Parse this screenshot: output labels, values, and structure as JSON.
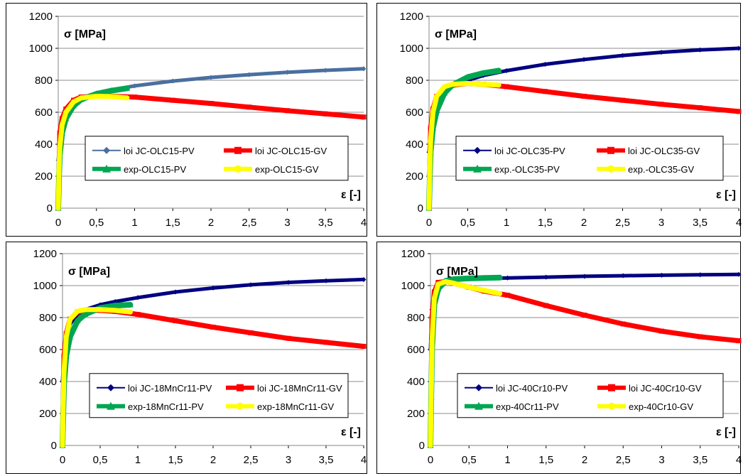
{
  "chart_data": [
    {
      "type": "line",
      "ylabel": "σ [MPa]",
      "xlabel": "ε [-]",
      "xlim": [
        0,
        4
      ],
      "ylim": [
        0,
        1200
      ],
      "xticks": [
        "0",
        "0,5",
        "1",
        "1,5",
        "2",
        "2,5",
        "3",
        "3,5",
        "4"
      ],
      "yticks": [
        "0",
        "200",
        "400",
        "600",
        "800",
        "1000",
        "1200"
      ],
      "grid": true,
      "legend_position": "center",
      "series": [
        {
          "name": "loi JC-OLC15-PV",
          "color": "#4a6fa0",
          "marker": "diamond",
          "x": [
            0,
            0.02,
            0.05,
            0.1,
            0.2,
            0.3,
            0.5,
            0.7,
            1,
            1.5,
            2,
            2.5,
            3,
            3.5,
            4
          ],
          "y": [
            300,
            450,
            540,
            600,
            660,
            690,
            720,
            740,
            765,
            795,
            818,
            835,
            850,
            862,
            872
          ]
        },
        {
          "name": "loi JC-OLC15-GV",
          "color": "#ff0000",
          "marker": "square",
          "x": [
            0,
            0.02,
            0.05,
            0.1,
            0.2,
            0.3,
            0.5,
            0.7,
            1,
            1.5,
            2,
            2.5,
            3,
            3.5,
            4
          ],
          "y": [
            0,
            470,
            560,
            620,
            675,
            695,
            700,
            700,
            695,
            675,
            655,
            632,
            610,
            590,
            570
          ]
        },
        {
          "name": "exp-OLC15-PV",
          "color": "#00a651",
          "marker": "triangle",
          "x": [
            0,
            0.01,
            0.02,
            0.05,
            0.1,
            0.2,
            0.3,
            0.5,
            0.7,
            0.9
          ],
          "y": [
            0,
            200,
            330,
            470,
            560,
            640,
            680,
            715,
            735,
            750
          ]
        },
        {
          "name": "exp-OLC15-GV",
          "color": "#ffff00",
          "marker": "circle",
          "x": [
            0,
            0.01,
            0.02,
            0.05,
            0.1,
            0.2,
            0.3,
            0.5,
            0.7,
            0.9
          ],
          "y": [
            0,
            230,
            380,
            520,
            600,
            665,
            690,
            700,
            698,
            690
          ]
        }
      ]
    },
    {
      "type": "line",
      "ylabel": "σ [MPa]",
      "xlabel": "ε [-]",
      "xlim": [
        0,
        4
      ],
      "ylim": [
        0,
        1200
      ],
      "xticks": [
        "0",
        "0,5",
        "1",
        "1,5",
        "2",
        "2,5",
        "3",
        "3,5",
        "4"
      ],
      "yticks": [
        "0",
        "200",
        "400",
        "600",
        "800",
        "1000",
        "1200"
      ],
      "grid": true,
      "legend_position": "center",
      "series": [
        {
          "name": "loi JC-OLC35-PV",
          "color": "#000080",
          "marker": "diamond",
          "x": [
            0,
            0.02,
            0.05,
            0.1,
            0.2,
            0.3,
            0.5,
            0.7,
            1,
            1.5,
            2,
            2.5,
            3,
            3.5,
            4
          ],
          "y": [
            350,
            500,
            600,
            680,
            740,
            770,
            800,
            830,
            860,
            900,
            930,
            955,
            975,
            990,
            1000
          ]
        },
        {
          "name": "loi JC-OLC35-GV",
          "color": "#ff0000",
          "marker": "square",
          "x": [
            0,
            0.02,
            0.05,
            0.1,
            0.2,
            0.3,
            0.5,
            0.7,
            1,
            1.5,
            2,
            2.5,
            3,
            3.5,
            4
          ],
          "y": [
            0,
            500,
            620,
            700,
            750,
            770,
            780,
            775,
            760,
            730,
            700,
            675,
            650,
            628,
            605
          ]
        },
        {
          "name": "exp.-OLC35-PV",
          "color": "#00a651",
          "marker": "triangle",
          "x": [
            0,
            0.01,
            0.02,
            0.05,
            0.1,
            0.2,
            0.3,
            0.5,
            0.7,
            0.9
          ],
          "y": [
            0,
            200,
            350,
            500,
            610,
            720,
            770,
            820,
            845,
            860
          ]
        },
        {
          "name": "exp.-OLC35-GV",
          "color": "#ffff00",
          "marker": "circle",
          "x": [
            0,
            0.01,
            0.02,
            0.05,
            0.1,
            0.2,
            0.3,
            0.5,
            0.7,
            0.9
          ],
          "y": [
            0,
            250,
            420,
            600,
            700,
            760,
            775,
            780,
            775,
            770
          ]
        }
      ]
    },
    {
      "type": "line",
      "ylabel": "σ [MPa]",
      "xlabel": "ε [-]",
      "xlim": [
        0,
        4
      ],
      "ylim": [
        0,
        1200
      ],
      "xticks": [
        "0",
        "0,5",
        "1",
        "1,5",
        "2",
        "2,5",
        "3",
        "3,5",
        "4"
      ],
      "yticks": [
        "0",
        "200",
        "400",
        "600",
        "800",
        "1000",
        "1200"
      ],
      "grid": true,
      "legend_position": "center",
      "series": [
        {
          "name": "loi JC-18MnCr11-PV",
          "color": "#000080",
          "marker": "diamond",
          "x": [
            0,
            0.02,
            0.05,
            0.1,
            0.2,
            0.3,
            0.5,
            0.7,
            1,
            1.5,
            2,
            2.5,
            3,
            3.5,
            4
          ],
          "y": [
            400,
            560,
            680,
            760,
            820,
            850,
            880,
            900,
            925,
            960,
            985,
            1005,
            1020,
            1030,
            1038
          ]
        },
        {
          "name": "loi JC-18MnCr11-GV",
          "color": "#ff0000",
          "marker": "square",
          "x": [
            0,
            0.02,
            0.05,
            0.1,
            0.2,
            0.3,
            0.5,
            0.7,
            1,
            1.5,
            2,
            2.5,
            3,
            3.5,
            4
          ],
          "y": [
            0,
            560,
            700,
            790,
            835,
            845,
            845,
            838,
            820,
            780,
            740,
            705,
            670,
            645,
            620
          ]
        },
        {
          "name": "exp-18MnCr11-PV",
          "color": "#00a651",
          "marker": "triangle",
          "x": [
            0,
            0.01,
            0.02,
            0.05,
            0.1,
            0.2,
            0.3,
            0.5,
            0.7,
            0.9
          ],
          "y": [
            0,
            200,
            380,
            560,
            680,
            780,
            820,
            860,
            875,
            880
          ]
        },
        {
          "name": "exp-18MnCr11-GV",
          "color": "#ffff00",
          "marker": "circle",
          "x": [
            0,
            0.01,
            0.02,
            0.05,
            0.1,
            0.2,
            0.3,
            0.5,
            0.7,
            0.9
          ],
          "y": [
            0,
            260,
            460,
            680,
            790,
            840,
            850,
            850,
            845,
            835
          ]
        }
      ]
    },
    {
      "type": "line",
      "ylabel": "σ [MPa]",
      "xlabel": "ε [-]",
      "xlim": [
        0,
        4
      ],
      "ylim": [
        0,
        1200
      ],
      "xticks": [
        "0",
        "0,5",
        "1",
        "1,5",
        "2",
        "2,5",
        "3",
        "3,5",
        "4"
      ],
      "yticks": [
        "0",
        "200",
        "400",
        "600",
        "800",
        "1000",
        "1200"
      ],
      "grid": true,
      "legend_position": "center",
      "series": [
        {
          "name": "loi JC-40Cr10-PV",
          "color": "#000080",
          "marker": "diamond",
          "x": [
            0,
            0.02,
            0.05,
            0.1,
            0.2,
            0.3,
            0.5,
            0.7,
            1,
            1.5,
            2,
            2.5,
            3,
            3.5,
            4
          ],
          "y": [
            600,
            850,
            960,
            1010,
            1030,
            1038,
            1042,
            1045,
            1048,
            1053,
            1058,
            1062,
            1065,
            1068,
            1070
          ]
        },
        {
          "name": "loi JC-40Cr10-GV",
          "color": "#ff0000",
          "marker": "square",
          "x": [
            0,
            0.02,
            0.05,
            0.1,
            0.2,
            0.3,
            0.5,
            0.7,
            1,
            1.5,
            2,
            2.5,
            3,
            3.5,
            4
          ],
          "y": [
            0,
            800,
            960,
            1020,
            1025,
            1015,
            990,
            965,
            940,
            875,
            815,
            760,
            715,
            680,
            655
          ]
        },
        {
          "name": "exp-40Cr11-PV",
          "color": "#00a651",
          "marker": "triangle",
          "x": [
            0,
            0.01,
            0.02,
            0.05,
            0.1,
            0.2,
            0.3,
            0.5,
            0.7,
            0.9
          ],
          "y": [
            0,
            300,
            600,
            880,
            980,
            1030,
            1040,
            1045,
            1048,
            1050
          ]
        },
        {
          "name": "exp-40Cr10-GV",
          "color": "#ffff00",
          "marker": "circle",
          "x": [
            0,
            0.01,
            0.02,
            0.05,
            0.1,
            0.2,
            0.3,
            0.5,
            0.7,
            0.9
          ],
          "y": [
            0,
            320,
            650,
            920,
            1010,
            1025,
            1015,
            990,
            970,
            950
          ]
        }
      ]
    }
  ]
}
